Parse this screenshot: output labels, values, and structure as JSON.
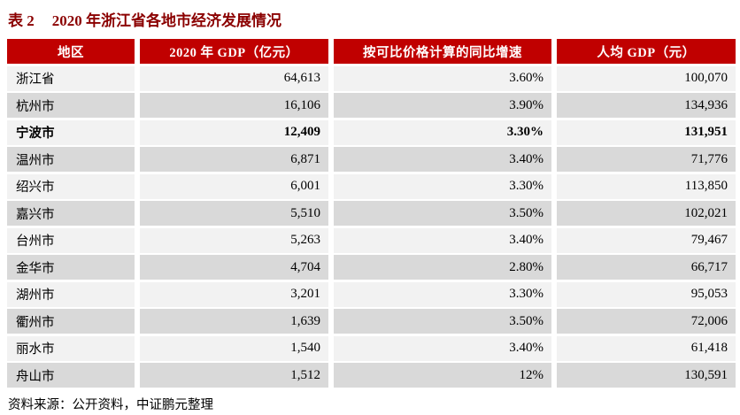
{
  "title": {
    "label": "表 2",
    "text": "2020 年浙江省各地市经济发展情况"
  },
  "table": {
    "columns": [
      "地区",
      "2020 年 GDP（亿元）",
      "按可比价格计算的同比增速",
      "人均 GDP（元）"
    ],
    "rows": [
      {
        "region": "浙江省",
        "gdp": "64,613",
        "growth": "3.60%",
        "per_capita": "100,070",
        "bold": false
      },
      {
        "region": "杭州市",
        "gdp": "16,106",
        "growth": "3.90%",
        "per_capita": "134,936",
        "bold": false
      },
      {
        "region": "宁波市",
        "gdp": "12,409",
        "growth": "3.30%",
        "per_capita": "131,951",
        "bold": true
      },
      {
        "region": "温州市",
        "gdp": "6,871",
        "growth": "3.40%",
        "per_capita": "71,776",
        "bold": false
      },
      {
        "region": "绍兴市",
        "gdp": "6,001",
        "growth": "3.30%",
        "per_capita": "113,850",
        "bold": false
      },
      {
        "region": "嘉兴市",
        "gdp": "5,510",
        "growth": "3.50%",
        "per_capita": "102,021",
        "bold": false
      },
      {
        "region": "台州市",
        "gdp": "5,263",
        "growth": "3.40%",
        "per_capita": "79,467",
        "bold": false
      },
      {
        "region": "金华市",
        "gdp": "4,704",
        "growth": "2.80%",
        "per_capita": "66,717",
        "bold": false
      },
      {
        "region": "湖州市",
        "gdp": "3,201",
        "growth": "3.30%",
        "per_capita": "95,053",
        "bold": false
      },
      {
        "region": "衢州市",
        "gdp": "1,639",
        "growth": "3.50%",
        "per_capita": "72,006",
        "bold": false
      },
      {
        "region": "丽水市",
        "gdp": "1,540",
        "growth": "3.40%",
        "per_capita": "61,418",
        "bold": false
      },
      {
        "region": "舟山市",
        "gdp": "1,512",
        "growth": "12%",
        "per_capita": "130,591",
        "bold": false
      }
    ]
  },
  "footer": {
    "source": "资料来源：公开资料，中证鹏元整理"
  },
  "colors": {
    "title_color": "#8B0000",
    "header_bg": "#C00000",
    "header_text": "#FFFFFF",
    "row_light": "#F2F2F2",
    "row_dark": "#D9D9D9"
  }
}
